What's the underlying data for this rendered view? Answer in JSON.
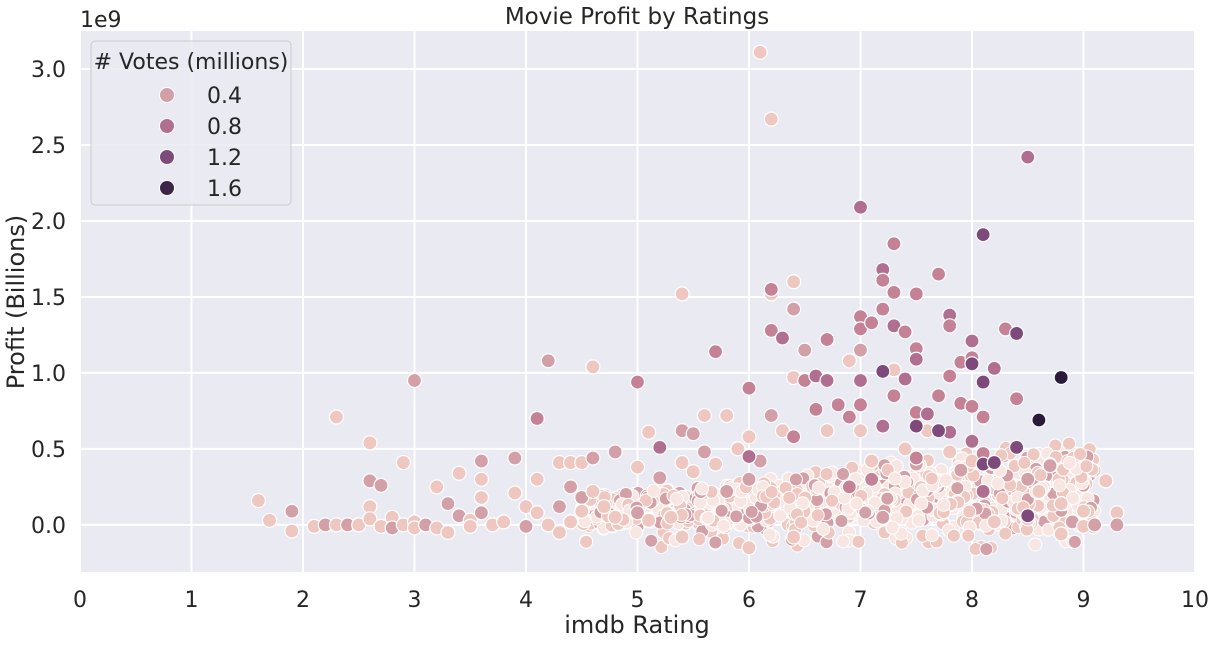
{
  "chart_data": {
    "type": "scatter",
    "title": "Movie Profit by Ratings",
    "xlabel": "imdb Rating",
    "ylabel": "Profit (Billions)",
    "y_offset_label": "1e9",
    "xlim": [
      0,
      10
    ],
    "ylim": [
      -0.31,
      3.25
    ],
    "x_ticks": [
      0,
      1,
      2,
      3,
      4,
      5,
      6,
      7,
      8,
      9,
      10
    ],
    "y_ticks": [
      0.0,
      0.5,
      1.0,
      1.5,
      2.0,
      2.5,
      3.0
    ],
    "x_tick_labels": [
      "0",
      "1",
      "2",
      "3",
      "4",
      "5",
      "6",
      "7",
      "8",
      "9",
      "10"
    ],
    "y_tick_labels": [
      "0.0",
      "0.5",
      "1.0",
      "1.5",
      "2.0",
      "2.5",
      "3.0"
    ],
    "grid": true,
    "legend": {
      "title": "# Votes (millions)",
      "placement": "top-left",
      "entries": [
        {
          "label": "0.4",
          "color": "#d4a0a8"
        },
        {
          "label": "0.8",
          "color": "#b06e90"
        },
        {
          "label": "1.2",
          "color": "#7e4a7c"
        },
        {
          "label": "1.6",
          "color": "#3d2449"
        }
      ]
    },
    "colors": {
      "background": "#eaeaf2",
      "grid": "#ffffff",
      "marker_edge": "#ffffff",
      "c0": "#f8e6e2",
      "c1": "#eec8c0",
      "c2": "#d4a0a8",
      "c3": "#c58296",
      "c4": "#b06e90",
      "c5": "#7e4a7c",
      "c6": "#3d2449",
      "c7": "#2c1a3d"
    },
    "series": [
      {
        "name": "0.4",
        "points": [
          [
            1.6,
            0.16
          ],
          [
            1.7,
            0.03
          ],
          [
            1.9,
            0.09
          ],
          [
            1.9,
            -0.04
          ],
          [
            2.1,
            -0.01
          ],
          [
            2.2,
            0.0
          ],
          [
            2.3,
            0.71
          ],
          [
            2.3,
            0.0
          ],
          [
            2.4,
            0.0
          ],
          [
            2.5,
            0.0
          ],
          [
            2.6,
            0.54
          ],
          [
            2.6,
            0.29
          ],
          [
            2.6,
            0.12
          ],
          [
            2.6,
            0.04
          ],
          [
            2.7,
            0.26
          ],
          [
            2.7,
            -0.01
          ],
          [
            2.8,
            0.05
          ],
          [
            2.8,
            -0.02
          ],
          [
            2.9,
            0.41
          ],
          [
            2.9,
            0.0
          ],
          [
            3.0,
            0.95
          ],
          [
            3.0,
            0.02
          ],
          [
            3.0,
            -0.02
          ],
          [
            3.1,
            0.0
          ],
          [
            3.2,
            0.25
          ],
          [
            3.2,
            -0.02
          ],
          [
            3.3,
            0.14
          ],
          [
            3.3,
            -0.05
          ],
          [
            3.4,
            0.34
          ],
          [
            3.4,
            0.06
          ],
          [
            3.5,
            0.03
          ],
          [
            3.5,
            -0.01
          ],
          [
            3.6,
            0.42
          ],
          [
            3.6,
            0.3
          ],
          [
            3.6,
            0.18
          ],
          [
            3.6,
            0.08
          ],
          [
            3.7,
            0.0
          ],
          [
            3.8,
            0.02
          ],
          [
            3.9,
            0.44
          ],
          [
            3.9,
            0.21
          ],
          [
            4.0,
            0.12
          ],
          [
            4.0,
            -0.01
          ],
          [
            4.1,
            0.3
          ],
          [
            4.1,
            0.08
          ],
          [
            4.2,
            1.08
          ],
          [
            4.2,
            0.0
          ],
          [
            4.3,
            0.41
          ],
          [
            4.3,
            0.12
          ],
          [
            4.3,
            -0.05
          ],
          [
            4.4,
            0.41
          ],
          [
            4.4,
            0.25
          ],
          [
            4.4,
            0.02
          ],
          [
            4.5,
            0.41
          ],
          [
            4.5,
            0.18
          ],
          [
            4.5,
            0.09
          ],
          [
            4.6,
            1.04
          ],
          [
            4.6,
            0.44
          ],
          [
            4.6,
            0.22
          ],
          [
            4.7,
            0.12
          ],
          [
            4.8,
            0.48
          ],
          [
            4.8,
            0.05
          ],
          [
            5.0,
            0.38
          ],
          [
            5.0,
            0.08
          ],
          [
            5.1,
            0.61
          ],
          [
            5.1,
            0.03
          ],
          [
            5.2,
            0.31
          ],
          [
            5.3,
            0.05
          ],
          [
            5.4,
            1.52
          ],
          [
            5.4,
            0.62
          ],
          [
            5.4,
            0.41
          ],
          [
            5.4,
            -0.08
          ],
          [
            5.5,
            0.6
          ],
          [
            5.5,
            0.35
          ],
          [
            5.6,
            0.72
          ],
          [
            5.6,
            0.48
          ],
          [
            5.7,
            0.4
          ],
          [
            5.8,
            0.72
          ],
          [
            5.8,
            0.22
          ],
          [
            5.9,
            0.5
          ],
          [
            6.0,
            0.58
          ],
          [
            6.0,
            0.3
          ],
          [
            6.0,
            -0.15
          ],
          [
            6.1,
            3.11
          ],
          [
            6.1,
            0.42
          ],
          [
            6.2,
            2.67
          ],
          [
            6.2,
            1.52
          ],
          [
            6.2,
            0.72
          ],
          [
            6.3,
            0.62
          ],
          [
            6.4,
            1.6
          ],
          [
            6.4,
            1.42
          ],
          [
            6.4,
            0.97
          ],
          [
            6.4,
            -0.08
          ],
          [
            6.5,
            1.15
          ],
          [
            6.7,
            0.62
          ],
          [
            6.9,
            1.08
          ],
          [
            7.0,
            1.15
          ],
          [
            7.0,
            0.62
          ],
          [
            7.1,
            0.42
          ],
          [
            7.2,
            0.05
          ],
          [
            7.3,
            1.02
          ],
          [
            7.4,
            0.5
          ],
          [
            7.5,
            0.4
          ],
          [
            7.6,
            0.62
          ],
          [
            7.8,
            0.48
          ],
          [
            7.9,
            0.36
          ],
          [
            8.0,
            0.42
          ],
          [
            8.2,
            0.02
          ],
          [
            8.5,
            0.3
          ],
          [
            8.5,
            0.04
          ],
          [
            8.6,
            0.22
          ],
          [
            8.7,
            0.39
          ],
          [
            8.8,
            0.14
          ],
          [
            8.8,
            -0.06
          ],
          [
            8.9,
            0.02
          ],
          [
            9.0,
            0.09
          ],
          [
            9.0,
            -0.01
          ],
          [
            9.1,
            0.0
          ],
          [
            9.2,
            0.29
          ],
          [
            9.3,
            0.08
          ],
          [
            9.3,
            0.0
          ]
        ]
      },
      {
        "name": "0.8",
        "points": [
          [
            4.1,
            0.7
          ],
          [
            5.0,
            0.94
          ],
          [
            5.2,
            0.51
          ],
          [
            5.7,
            1.14
          ],
          [
            6.0,
            0.9
          ],
          [
            6.0,
            0.45
          ],
          [
            6.2,
            1.55
          ],
          [
            6.2,
            1.28
          ],
          [
            6.3,
            1.23
          ],
          [
            6.4,
            0.58
          ],
          [
            6.5,
            0.95
          ],
          [
            6.6,
            0.98
          ],
          [
            6.6,
            0.76
          ],
          [
            6.7,
            1.22
          ],
          [
            6.7,
            0.95
          ],
          [
            6.8,
            0.79
          ],
          [
            6.9,
            0.71
          ],
          [
            7.0,
            2.09
          ],
          [
            7.0,
            1.37
          ],
          [
            7.0,
            1.29
          ],
          [
            7.0,
            0.95
          ],
          [
            7.0,
            0.79
          ],
          [
            7.1,
            1.33
          ],
          [
            7.2,
            1.68
          ],
          [
            7.2,
            1.61
          ],
          [
            7.2,
            1.42
          ],
          [
            7.2,
            0.65
          ],
          [
            7.3,
            1.85
          ],
          [
            7.3,
            1.53
          ],
          [
            7.3,
            1.31
          ],
          [
            7.3,
            0.85
          ],
          [
            7.4,
            1.27
          ],
          [
            7.4,
            0.96
          ],
          [
            7.5,
            1.52
          ],
          [
            7.5,
            1.16
          ],
          [
            7.5,
            1.09
          ],
          [
            7.5,
            0.74
          ],
          [
            7.5,
            0.44
          ],
          [
            7.6,
            0.73
          ],
          [
            7.7,
            1.65
          ],
          [
            7.7,
            0.85
          ],
          [
            7.8,
            1.38
          ],
          [
            7.8,
            1.31
          ],
          [
            7.8,
            0.98
          ],
          [
            7.8,
            0.61
          ],
          [
            7.9,
            1.07
          ],
          [
            7.9,
            0.8
          ],
          [
            8.0,
            1.21
          ],
          [
            8.0,
            1.1
          ],
          [
            8.0,
            0.78
          ],
          [
            8.0,
            0.55
          ],
          [
            8.1,
            0.71
          ],
          [
            8.1,
            0.47
          ],
          [
            8.2,
            1.03
          ],
          [
            8.3,
            1.29
          ],
          [
            8.4,
            0.83
          ],
          [
            8.5,
            2.42
          ],
          [
            7.1,
            0.3
          ],
          [
            6.9,
            0.25
          ],
          [
            8.1,
            0.22
          ]
        ]
      },
      {
        "name": "1.2",
        "points": [
          [
            7.2,
            1.01
          ],
          [
            7.5,
            0.65
          ],
          [
            7.7,
            0.62
          ],
          [
            8.0,
            1.06
          ],
          [
            8.1,
            1.91
          ],
          [
            8.1,
            0.94
          ],
          [
            8.1,
            0.4
          ],
          [
            8.2,
            0.41
          ],
          [
            8.4,
            1.26
          ],
          [
            8.4,
            0.51
          ],
          [
            8.5,
            0.06
          ]
        ]
      },
      {
        "name": "1.6",
        "points": [
          [
            8.8,
            0.97
          ],
          [
            8.6,
            0.69
          ]
        ]
      }
    ]
  }
}
